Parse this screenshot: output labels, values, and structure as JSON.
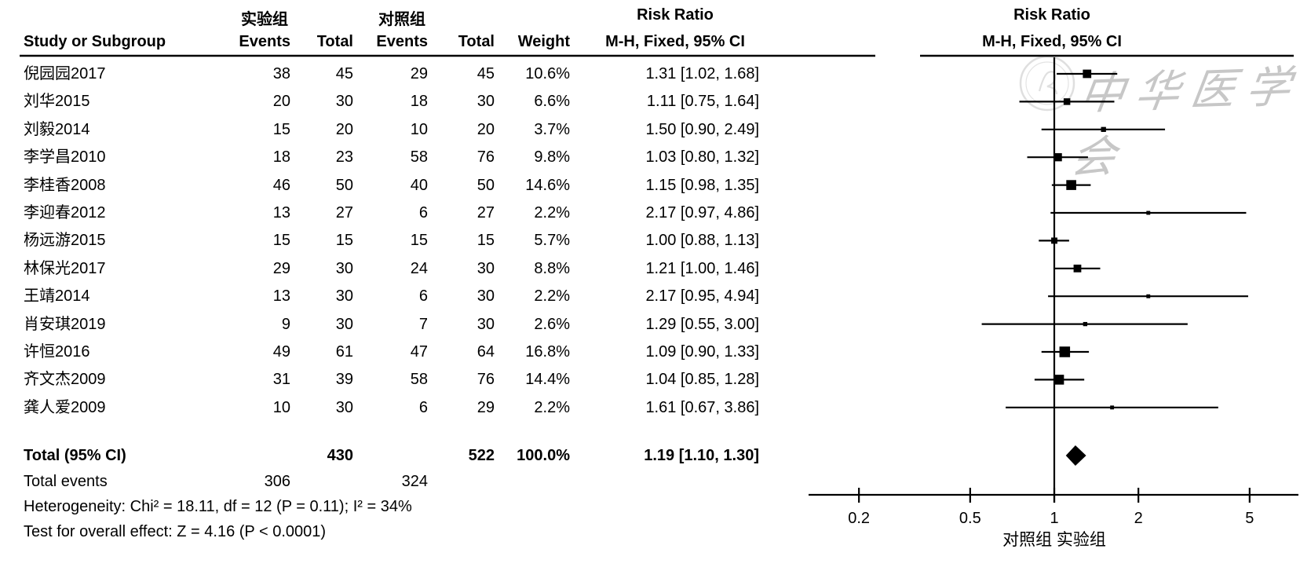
{
  "header": {
    "exp_group": "实验组",
    "ctrl_group": "对照组",
    "study_col": "Study or Subgroup",
    "events_col": "Events",
    "total_col": "Total",
    "weight_col": "Weight",
    "risk_ratio": "Risk Ratio",
    "mh_fixed": "M-H, Fixed, 95% CI"
  },
  "watermark": {
    "text": "中华医学会"
  },
  "totals": {
    "label": "Total (95% CI)",
    "total_exp": "430",
    "total_ctrl": "522",
    "weight": "100.0%",
    "rr_ci": "1.19 [1.10, 1.30]",
    "events_label": "Total events",
    "events_exp": "306",
    "events_ctrl": "324",
    "heterogeneity": "Heterogeneity: Chi² = 18.11, df = 12 (P = 0.11); I² = 34%",
    "overall": "Test for overall effect: Z = 4.16 (P < 0.0001)"
  },
  "axis": {
    "favours": "对照组  实验组"
  },
  "chart_data": {
    "type": "forest",
    "title": "Risk Ratio",
    "method": "M-H, Fixed, 95% CI",
    "x_scale": "log",
    "x_ticks": [
      0.2,
      0.5,
      1,
      2,
      5
    ],
    "favours_left": "对照组",
    "favours_right": "实验组",
    "studies": [
      {
        "name": "倪园园2017",
        "events_exp": 38,
        "total_exp": 45,
        "events_ctrl": 29,
        "total_ctrl": 45,
        "weight": "10.6%",
        "weight_val": 10.6,
        "rr": 1.31,
        "ci_low": 1.02,
        "ci_high": 1.68,
        "rr_ci": "1.31 [1.02, 1.68]"
      },
      {
        "name": "刘华2015",
        "events_exp": 20,
        "total_exp": 30,
        "events_ctrl": 18,
        "total_ctrl": 30,
        "weight": "6.6%",
        "weight_val": 6.6,
        "rr": 1.11,
        "ci_low": 0.75,
        "ci_high": 1.64,
        "rr_ci": "1.11 [0.75, 1.64]"
      },
      {
        "name": "刘毅2014",
        "events_exp": 15,
        "total_exp": 20,
        "events_ctrl": 10,
        "total_ctrl": 20,
        "weight": "3.7%",
        "weight_val": 3.7,
        "rr": 1.5,
        "ci_low": 0.9,
        "ci_high": 2.49,
        "rr_ci": "1.50 [0.90, 2.49]"
      },
      {
        "name": "李学昌2010",
        "events_exp": 18,
        "total_exp": 23,
        "events_ctrl": 58,
        "total_ctrl": 76,
        "weight": "9.8%",
        "weight_val": 9.8,
        "rr": 1.03,
        "ci_low": 0.8,
        "ci_high": 1.32,
        "rr_ci": "1.03 [0.80, 1.32]"
      },
      {
        "name": "李桂香2008",
        "events_exp": 46,
        "total_exp": 50,
        "events_ctrl": 40,
        "total_ctrl": 50,
        "weight": "14.6%",
        "weight_val": 14.6,
        "rr": 1.15,
        "ci_low": 0.98,
        "ci_high": 1.35,
        "rr_ci": "1.15 [0.98, 1.35]"
      },
      {
        "name": "李迎春2012",
        "events_exp": 13,
        "total_exp": 27,
        "events_ctrl": 6,
        "total_ctrl": 27,
        "weight": "2.2%",
        "weight_val": 2.2,
        "rr": 2.17,
        "ci_low": 0.97,
        "ci_high": 4.86,
        "rr_ci": "2.17 [0.97, 4.86]"
      },
      {
        "name": "杨远游2015",
        "events_exp": 15,
        "total_exp": 15,
        "events_ctrl": 15,
        "total_ctrl": 15,
        "weight": "5.7%",
        "weight_val": 5.7,
        "rr": 1.0,
        "ci_low": 0.88,
        "ci_high": 1.13,
        "rr_ci": "1.00 [0.88, 1.13]"
      },
      {
        "name": "林保光2017",
        "events_exp": 29,
        "total_exp": 30,
        "events_ctrl": 24,
        "total_ctrl": 30,
        "weight": "8.8%",
        "weight_val": 8.8,
        "rr": 1.21,
        "ci_low": 1.0,
        "ci_high": 1.46,
        "rr_ci": "1.21 [1.00, 1.46]"
      },
      {
        "name": "王靖2014",
        "events_exp": 13,
        "total_exp": 30,
        "events_ctrl": 6,
        "total_ctrl": 30,
        "weight": "2.2%",
        "weight_val": 2.2,
        "rr": 2.17,
        "ci_low": 0.95,
        "ci_high": 4.94,
        "rr_ci": "2.17 [0.95, 4.94]"
      },
      {
        "name": "肖安琪2019",
        "events_exp": 9,
        "total_exp": 30,
        "events_ctrl": 7,
        "total_ctrl": 30,
        "weight": "2.6%",
        "weight_val": 2.6,
        "rr": 1.29,
        "ci_low": 0.55,
        "ci_high": 3.0,
        "rr_ci": "1.29 [0.55, 3.00]"
      },
      {
        "name": "许恒2016",
        "events_exp": 49,
        "total_exp": 61,
        "events_ctrl": 47,
        "total_ctrl": 64,
        "weight": "16.8%",
        "weight_val": 16.8,
        "rr": 1.09,
        "ci_low": 0.9,
        "ci_high": 1.33,
        "rr_ci": "1.09 [0.90, 1.33]"
      },
      {
        "name": "齐文杰2009",
        "events_exp": 31,
        "total_exp": 39,
        "events_ctrl": 58,
        "total_ctrl": 76,
        "weight": "14.4%",
        "weight_val": 14.4,
        "rr": 1.04,
        "ci_low": 0.85,
        "ci_high": 1.28,
        "rr_ci": "1.04 [0.85, 1.28]"
      },
      {
        "name": "龚人爱2009",
        "events_exp": 10,
        "total_exp": 30,
        "events_ctrl": 6,
        "total_ctrl": 29,
        "weight": "2.2%",
        "weight_val": 2.2,
        "rr": 1.61,
        "ci_low": 0.67,
        "ci_high": 3.86,
        "rr_ci": "1.61 [0.67, 3.86]"
      }
    ],
    "total": {
      "total_exp": 430,
      "total_ctrl": 522,
      "weight": "100.0%",
      "rr": 1.19,
      "ci_low": 1.1,
      "ci_high": 1.3,
      "events_exp": 306,
      "events_ctrl": 324,
      "heterogeneity": "Heterogeneity: Chi² = 18.11, df = 12 (P = 0.11); I² = 34%",
      "overall_effect": "Test for overall effect: Z = 4.16 (P < 0.0001)"
    }
  }
}
